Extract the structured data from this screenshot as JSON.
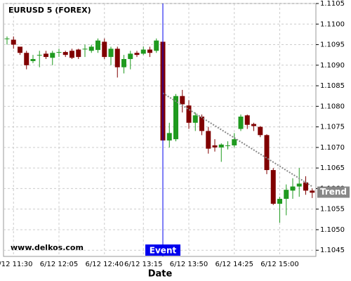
{
  "chart_data": {
    "type": "candlestick",
    "title": "EURUSD 5 (FOREX)",
    "x_label": "Date",
    "watermark": "www.delkos.com",
    "categories": [
      null,
      "6/12 11:30",
      null,
      null,
      null,
      null,
      null,
      null,
      "6/12 12:05",
      null,
      null,
      null,
      null,
      null,
      null,
      "6/12 12:40",
      null,
      null,
      null,
      null,
      null,
      "6/12 13:15",
      null,
      null,
      null,
      null,
      null,
      null,
      "6/12 13:50",
      null,
      null,
      null,
      null,
      null,
      null,
      "6/12 14:25",
      null,
      null,
      null,
      null,
      null,
      null,
      "6/12 15:00",
      null,
      null,
      null,
      null,
      null
    ],
    "open": [
      1.10965,
      1.10962,
      1.10945,
      1.1093,
      1.1091,
      1.10925,
      1.10928,
      1.10918,
      1.10932,
      1.10932,
      1.10935,
      1.10938,
      1.1094,
      1.10935,
      1.10937,
      1.10957,
      1.1092,
      1.1094,
      1.10895,
      1.10915,
      1.1093,
      1.10928,
      1.10938,
      1.10935,
      1.10957,
      1.10717,
      1.1072,
      1.10825,
      1.10802,
      1.1076,
      1.10775,
      1.1074,
      1.10705,
      1.107,
      1.10705,
      1.10705,
      1.10745,
      1.10778,
      1.10757,
      1.1075,
      1.1073,
      1.10645,
      1.10563,
      1.10575,
      1.10595,
      1.10605,
      1.10615,
      1.10595
    ],
    "high": [
      1.1097,
      1.1097,
      1.10945,
      1.10935,
      1.10925,
      1.10935,
      1.10935,
      1.10935,
      1.1094,
      1.10935,
      1.1094,
      1.1094,
      1.1095,
      1.1095,
      1.10965,
      1.10965,
      1.10945,
      1.10945,
      1.10925,
      1.10935,
      1.10935,
      1.10945,
      1.10945,
      1.10965,
      1.1096,
      1.1076,
      1.1083,
      1.1084,
      1.10815,
      1.10785,
      1.1078,
      1.1075,
      1.1072,
      1.1071,
      1.10715,
      1.10735,
      1.1078,
      1.1078,
      1.1076,
      1.10752,
      1.10732,
      1.1065,
      1.1058,
      1.1061,
      1.10625,
      1.1065,
      1.1063,
      1.106
    ],
    "low": [
      1.1095,
      1.1094,
      1.10925,
      1.1089,
      1.10905,
      1.10895,
      1.10915,
      1.109,
      1.1092,
      1.1092,
      1.10915,
      1.10915,
      1.1092,
      1.1093,
      1.1093,
      1.10915,
      1.109,
      1.1087,
      1.1088,
      1.1089,
      1.1092,
      1.10925,
      1.1092,
      1.1093,
      1.10717,
      1.107,
      1.10715,
      1.10785,
      1.10745,
      1.1074,
      1.1073,
      1.10685,
      1.1069,
      1.10665,
      1.10695,
      1.107,
      1.1074,
      1.10745,
      1.1074,
      1.10725,
      1.10635,
      1.1056,
      1.10517,
      1.10535,
      1.10575,
      1.1058,
      1.10585,
      1.10577
    ],
    "close": [
      1.10965,
      1.1095,
      1.1093,
      1.109,
      1.10915,
      1.10925,
      1.1092,
      1.1093,
      1.10932,
      1.10925,
      1.10918,
      1.1092,
      1.1094,
      1.10945,
      1.1096,
      1.1092,
      1.1094,
      1.10895,
      1.10915,
      1.10928,
      1.10925,
      1.10938,
      1.1093,
      1.1096,
      1.10717,
      1.10735,
      1.10825,
      1.10805,
      1.1076,
      1.10778,
      1.1074,
      1.10697,
      1.107,
      1.10707,
      1.10705,
      1.1072,
      1.10775,
      1.10755,
      1.10752,
      1.1073,
      1.10645,
      1.10563,
      1.10575,
      1.10597,
      1.10605,
      1.10612,
      1.10595,
      1.1059
    ],
    "up_color": "#1f9a1f",
    "down_color": "#800000",
    "ylim": [
      1.10435,
      1.1105
    ],
    "yticks": [
      1.1045,
      {
        "value": 1.105,
        "label": "1.1050"
      },
      1.1055,
      {
        "value": 1.106,
        "label": "1.1060"
      },
      1.1065,
      {
        "value": 1.107,
        "label": "1.1070"
      },
      1.1075,
      {
        "value": 1.108,
        "label": "1.1080"
      },
      1.1085,
      {
        "value": 1.109,
        "label": "1.1090"
      },
      1.1095,
      {
        "value": 1.11,
        "label": "1.1100"
      },
      1.1105
    ],
    "grid": true,
    "event": {
      "label": "Event",
      "index": 24,
      "color": "#0000ee"
    },
    "trend": {
      "name": "Trend",
      "x": [
        24,
        47
      ],
      "values": [
        1.10832,
        1.10605
      ],
      "color": "#888888"
    }
  }
}
